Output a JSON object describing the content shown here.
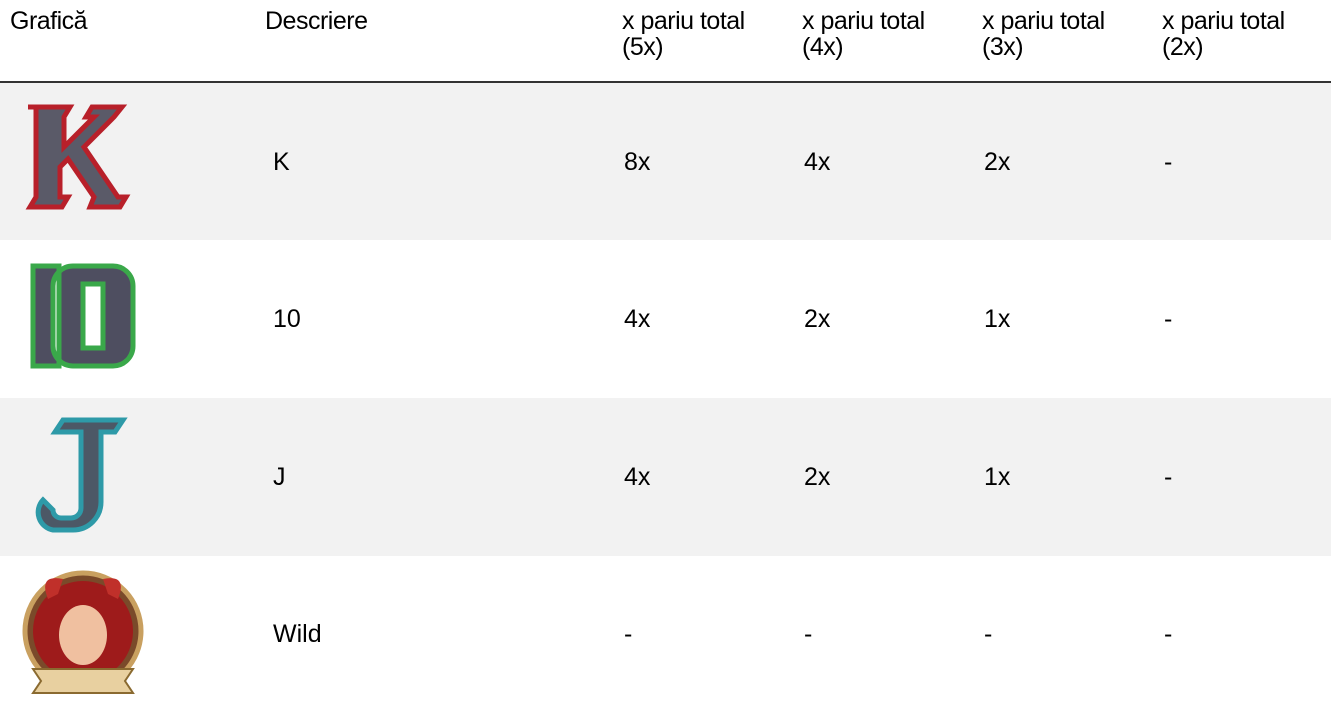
{
  "table": {
    "header": [
      "Grafică",
      "Descriere",
      "x pariu total (5x)",
      "x pariu total (4x)",
      "x pariu total (3x)",
      "x pariu total (2x)"
    ],
    "rows": [
      {
        "description": "K",
        "values": [
          "8x",
          "4x",
          "2x",
          "-"
        ]
      },
      {
        "description": "10",
        "values": [
          "4x",
          "2x",
          "1x",
          "-"
        ]
      },
      {
        "description": "J",
        "values": [
          "4x",
          "2x",
          "1x",
          "-"
        ]
      },
      {
        "description": "Wild",
        "values": [
          "-",
          "-",
          "-",
          "-"
        ]
      }
    ]
  }
}
